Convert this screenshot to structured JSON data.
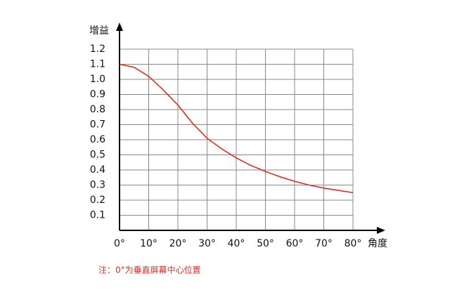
{
  "chart_data": {
    "type": "line",
    "y_label": "增益",
    "x_label": "角度",
    "note": "注：0°为垂直屏幕中心位置",
    "x": [
      0,
      5,
      10,
      15,
      20,
      25,
      30,
      35,
      40,
      45,
      50,
      55,
      60,
      65,
      70,
      75,
      80
    ],
    "series": [
      {
        "color": "#e8281e",
        "values": [
          1.1,
          1.08,
          1.02,
          0.93,
          0.83,
          0.71,
          0.61,
          0.54,
          0.48,
          0.43,
          0.39,
          0.355,
          0.325,
          0.3,
          0.28,
          0.265,
          0.25
        ]
      }
    ],
    "xlim": [
      0,
      80
    ],
    "ylim": [
      0,
      1.2
    ],
    "xticks": [
      {
        "value": 0,
        "label": "0°"
      },
      {
        "value": 10,
        "label": "10°"
      },
      {
        "value": 20,
        "label": "20°"
      },
      {
        "value": 30,
        "label": "30°"
      },
      {
        "value": 40,
        "label": "40°"
      },
      {
        "value": 50,
        "label": "50°"
      },
      {
        "value": 60,
        "label": "60°"
      },
      {
        "value": 70,
        "label": "70°"
      },
      {
        "value": 80,
        "label": "80°"
      }
    ],
    "yticks": [
      0.1,
      0.2,
      0.3,
      0.4,
      0.5,
      0.6,
      0.7,
      0.8,
      0.9,
      {
        "value": 1,
        "label": "1.0"
      },
      1.1,
      1.2
    ],
    "grid": true
  }
}
